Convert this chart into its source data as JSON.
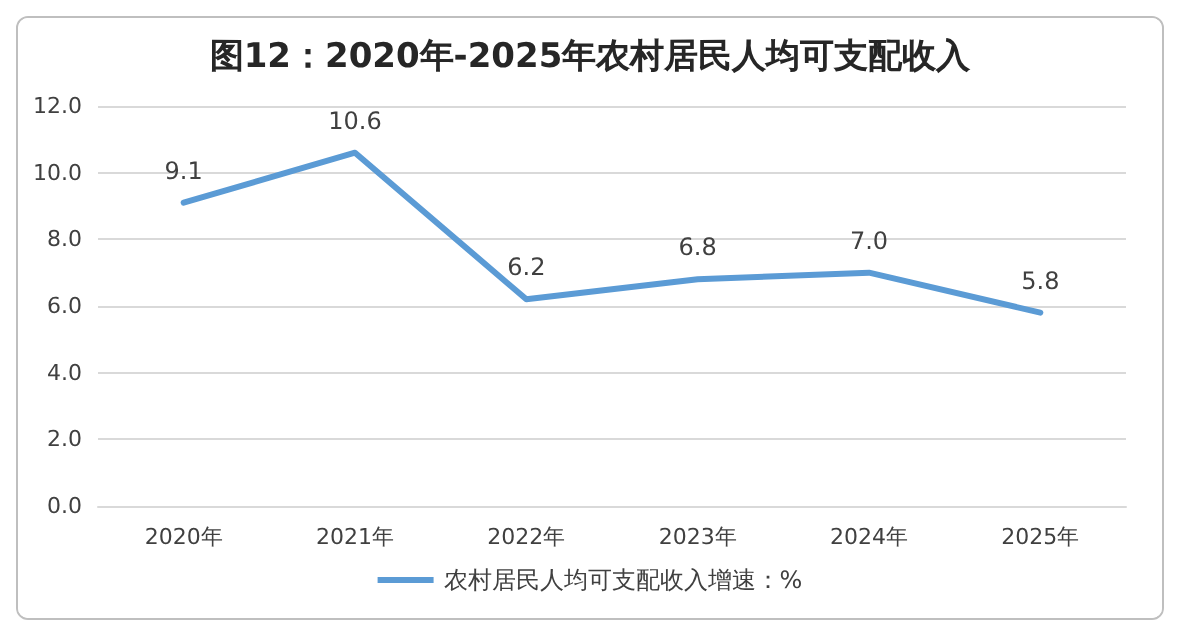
{
  "chart_data": {
    "type": "line",
    "title": "图12：2020年-2025年农村居民人均可支配收入",
    "categories": [
      "2020年",
      "2021年",
      "2022年",
      "2023年",
      "2024年",
      "2025年"
    ],
    "series": [
      {
        "name": "农村居民人均可支配收入增速：%",
        "color": "#5b9bd5",
        "values": [
          9.1,
          10.6,
          6.2,
          6.8,
          7.0,
          5.8
        ],
        "value_labels": [
          "9.1",
          "10.6",
          "6.2",
          "6.8",
          "7.0",
          "5.8"
        ]
      }
    ],
    "ylim": [
      0,
      12
    ],
    "yticks": [
      {
        "value": 0,
        "label": "0.0"
      },
      {
        "value": 2,
        "label": "2.0"
      },
      {
        "value": 4,
        "label": "4.0"
      },
      {
        "value": 6,
        "label": "6.0"
      },
      {
        "value": 8,
        "label": "8.0"
      },
      {
        "value": 10,
        "label": "10.0"
      },
      {
        "value": 12,
        "label": "12.0"
      }
    ],
    "grid": "y",
    "legend": "bottom",
    "marker": "none",
    "line_style": "solid"
  }
}
